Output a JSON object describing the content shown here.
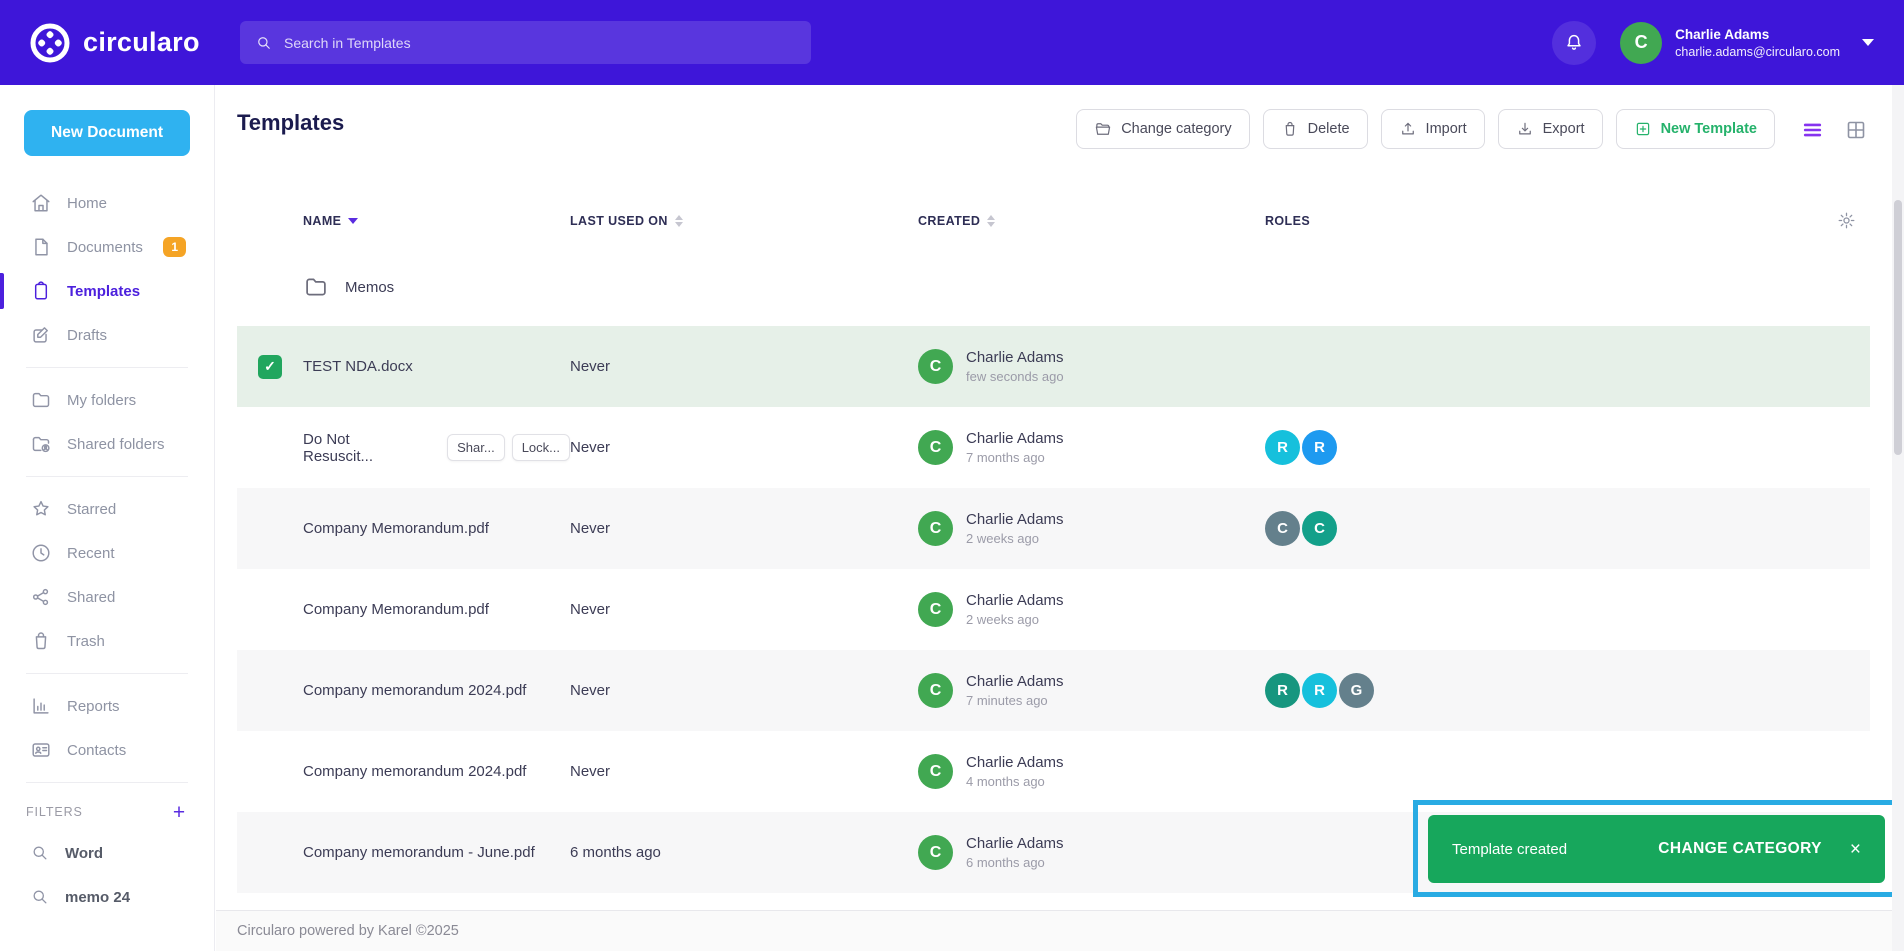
{
  "colors": {
    "topbar_purple": "#3e16d9",
    "accent_purple": "#4c20dd",
    "new_document_blue": "#2fb2f0",
    "toast_green": "#17a75c",
    "annotation_blue": "#29abe3",
    "badge_orange": "#f5a425",
    "avatar_green": "#41a852",
    "selected_row_green": "#e6f0e8"
  },
  "topbar": {
    "brand": "circularo",
    "search_placeholder": "Search in Templates",
    "user_name": "Charlie Adams",
    "user_email": "charlie.adams@circularo.com",
    "user_initial": "C"
  },
  "sidebar": {
    "new_document": "New Document",
    "items": [
      {
        "label": "Home",
        "icon": "home"
      },
      {
        "label": "Documents",
        "icon": "document",
        "badge": "1"
      },
      {
        "label": "Templates",
        "icon": "clipboard",
        "active": true
      },
      {
        "label": "Drafts",
        "icon": "edit"
      },
      {
        "divider": true
      },
      {
        "label": "My folders",
        "icon": "folder"
      },
      {
        "label": "Shared folders",
        "icon": "folder-shared"
      },
      {
        "divider": true
      },
      {
        "label": "Starred",
        "icon": "star"
      },
      {
        "label": "Recent",
        "icon": "clock"
      },
      {
        "label": "Shared",
        "icon": "share"
      },
      {
        "label": "Trash",
        "icon": "trash"
      },
      {
        "divider": true
      },
      {
        "label": "Reports",
        "icon": "reports"
      },
      {
        "label": "Contacts",
        "icon": "contacts"
      },
      {
        "divider": true
      }
    ],
    "filters_label": "FILTERS",
    "filters_add": "+",
    "filters": [
      {
        "label": "Word",
        "icon": "search"
      },
      {
        "label": "memo 24",
        "icon": "search"
      }
    ]
  },
  "main": {
    "title": "Templates",
    "toolbar": [
      {
        "label": "Change category",
        "icon": "folder-open"
      },
      {
        "label": "Delete",
        "icon": "trash"
      },
      {
        "label": "Import",
        "icon": "upload"
      },
      {
        "label": "Export",
        "icon": "download"
      },
      {
        "label": "New Template",
        "icon": "plus-square",
        "accent": true
      }
    ],
    "columns": [
      {
        "label": "NAME",
        "sort": "desc"
      },
      {
        "label": "LAST USED ON",
        "sort": "both"
      },
      {
        "label": "CREATED",
        "sort": "both"
      },
      {
        "label": "ROLES"
      }
    ],
    "rows": [
      {
        "type": "folder",
        "name": "Memos"
      },
      {
        "name": "TEST NDA.docx",
        "selected": true,
        "checked": true,
        "last_used": "Never",
        "created_by": "Charlie Adams",
        "created_initial": "C",
        "created_when": "few seconds ago",
        "roles": []
      },
      {
        "name": "Do Not Resuscit...",
        "tags": [
          "Shar...",
          "Lock..."
        ],
        "last_used": "Never",
        "created_by": "Charlie Adams",
        "created_initial": "C",
        "created_when": "7 months ago",
        "roles": [
          {
            "letter": "R",
            "color": "#16c0dc"
          },
          {
            "letter": "R",
            "color": "#1e9af0"
          }
        ]
      },
      {
        "name": "Company Memorandum.pdf",
        "striped": true,
        "last_used": "Never",
        "created_by": "Charlie Adams",
        "created_initial": "C",
        "created_when": "2 weeks ago",
        "roles": [
          {
            "letter": "C",
            "color": "#64808c"
          },
          {
            "letter": "C",
            "color": "#13a08a"
          }
        ]
      },
      {
        "name": "Company Memorandum.pdf",
        "last_used": "Never",
        "created_by": "Charlie Adams",
        "created_initial": "C",
        "created_when": "2 weeks ago",
        "roles": []
      },
      {
        "name": "Company memorandum 2024.pdf",
        "striped": true,
        "last_used": "Never",
        "created_by": "Charlie Adams",
        "created_initial": "C",
        "created_when": "7 minutes ago",
        "roles": [
          {
            "letter": "R",
            "color": "#17967f"
          },
          {
            "letter": "R",
            "color": "#16c0dc"
          },
          {
            "letter": "G",
            "color": "#64808c"
          }
        ]
      },
      {
        "name": "Company memorandum 2024.pdf",
        "last_used": "Never",
        "created_by": "Charlie Adams",
        "created_initial": "C",
        "created_when": "4 months ago",
        "roles": []
      },
      {
        "name": "Company memorandum - June.pdf",
        "striped": true,
        "last_used": "6 months ago",
        "created_by": "Charlie Adams",
        "created_initial": "C",
        "created_when": "6 months ago",
        "roles": []
      }
    ]
  },
  "toast": {
    "message": "Template created",
    "action": "CHANGE CATEGORY",
    "close": "×"
  },
  "footer": {
    "text": "Circularo powered by Karel ©2025",
    "help": "?"
  }
}
